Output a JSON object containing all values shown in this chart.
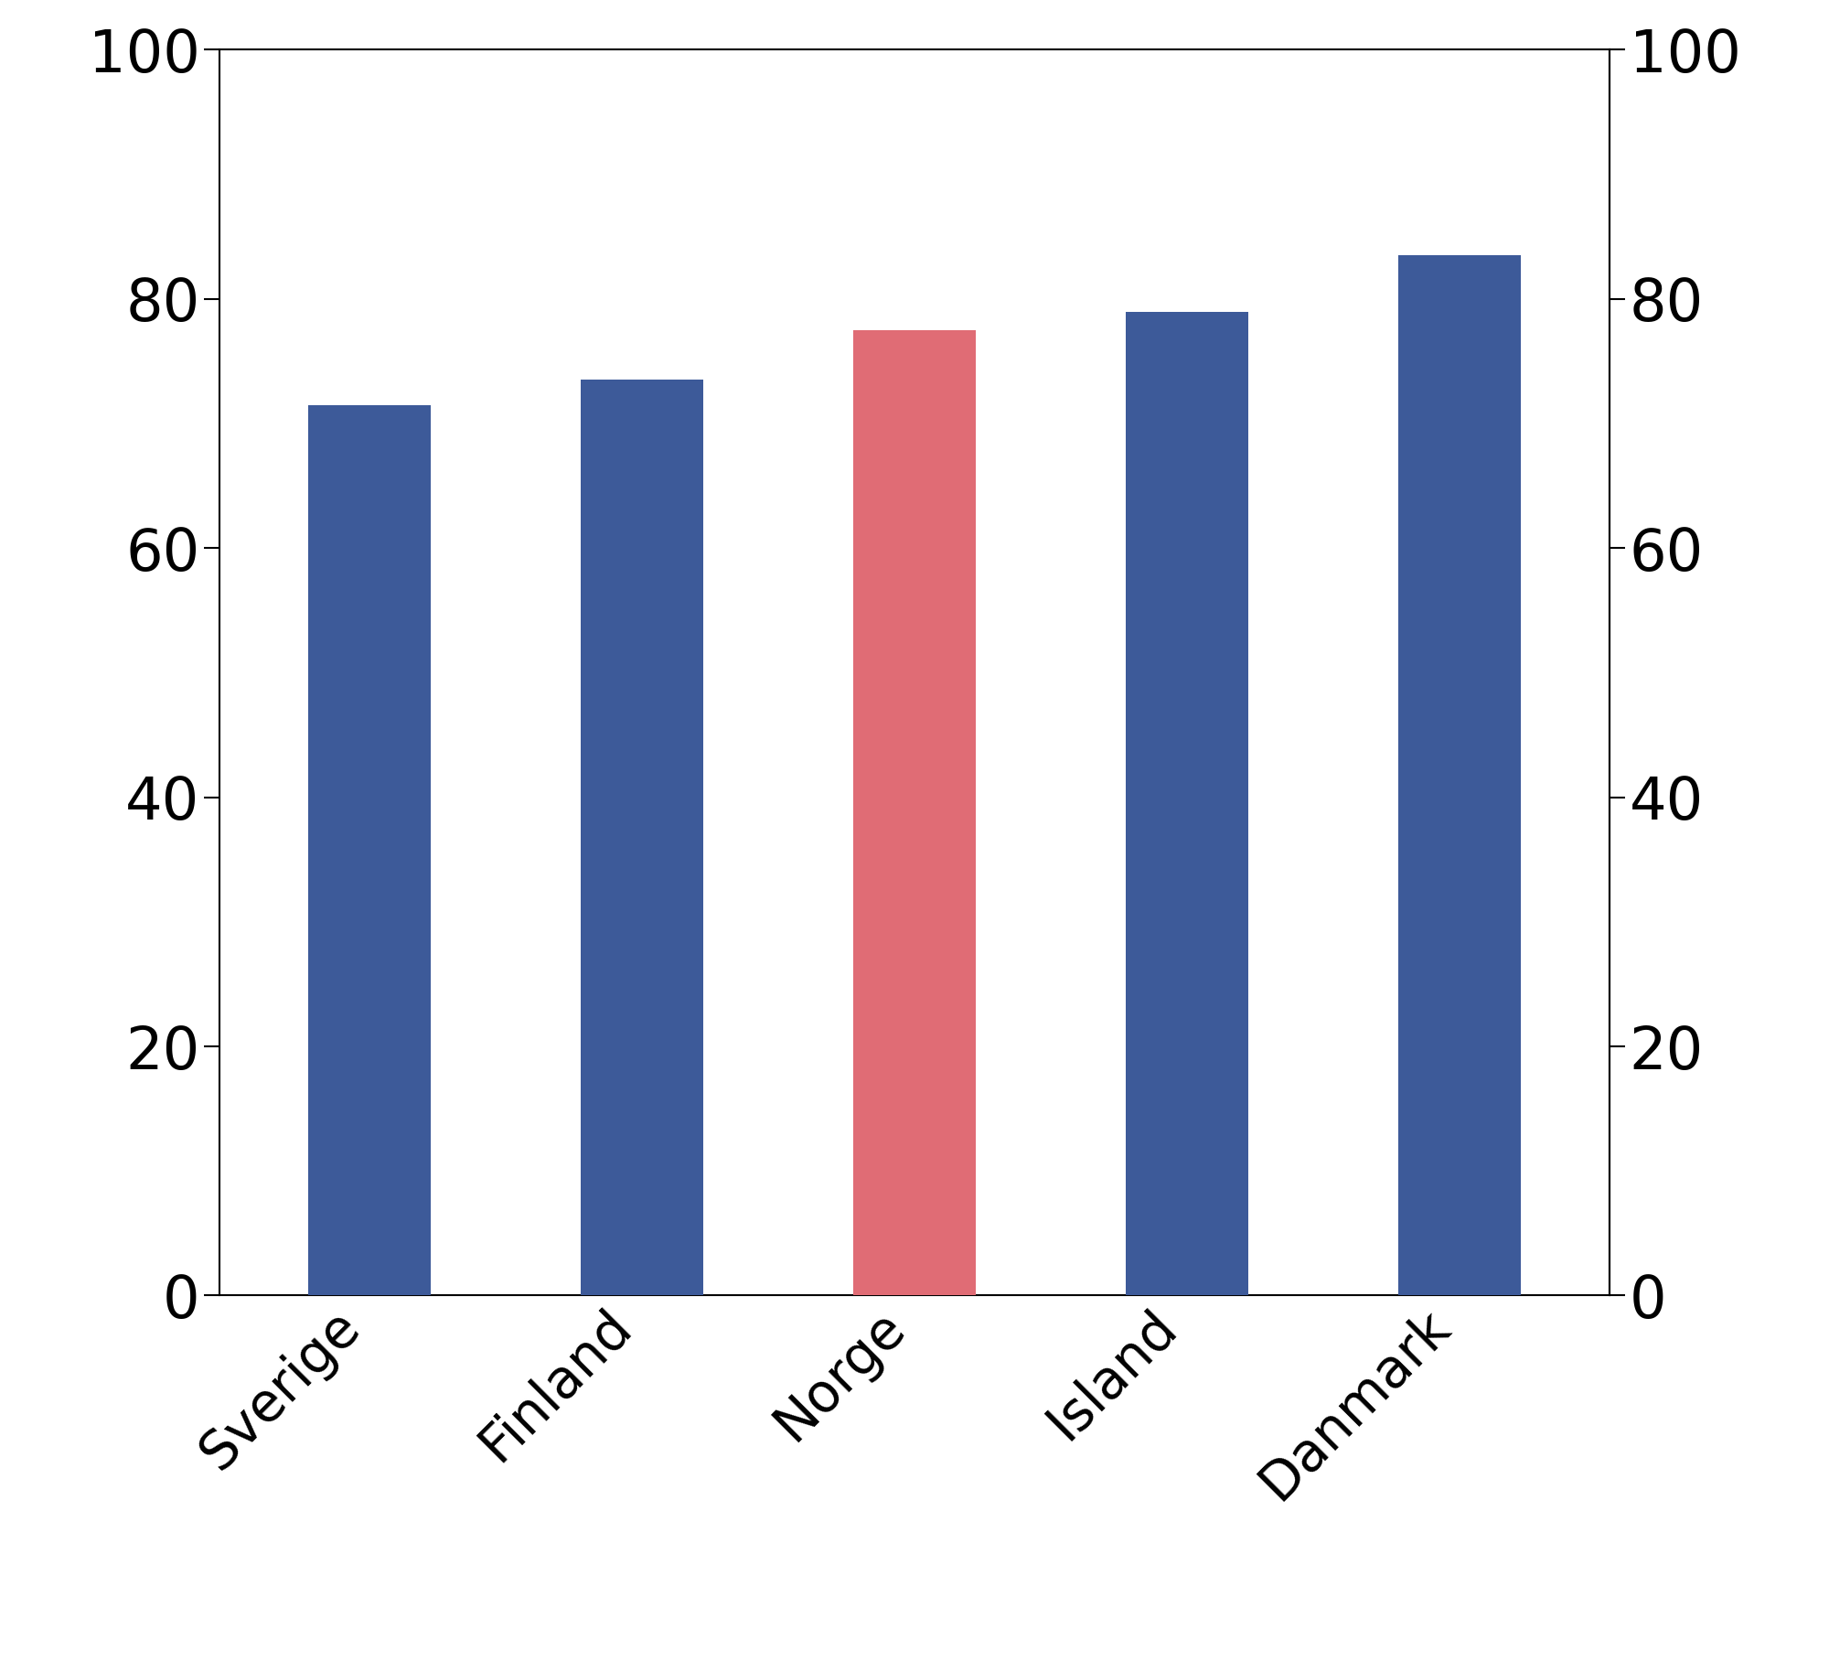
{
  "categories": [
    "Sverige",
    "Finland",
    "Norge",
    "Island",
    "Danmark"
  ],
  "values": [
    71.5,
    73.5,
    77.5,
    79.0,
    83.5
  ],
  "bar_colors": [
    "#3d5a99",
    "#3d5a99",
    "#e06c75",
    "#3d5a99",
    "#3d5a99"
  ],
  "ylim": [
    0,
    100
  ],
  "yticks": [
    0,
    20,
    40,
    60,
    80,
    100
  ],
  "background_color": "#ffffff",
  "bar_width": 0.45,
  "tick_fontsize": 46,
  "label_fontsize": 42,
  "spine_linewidth": 1.5
}
